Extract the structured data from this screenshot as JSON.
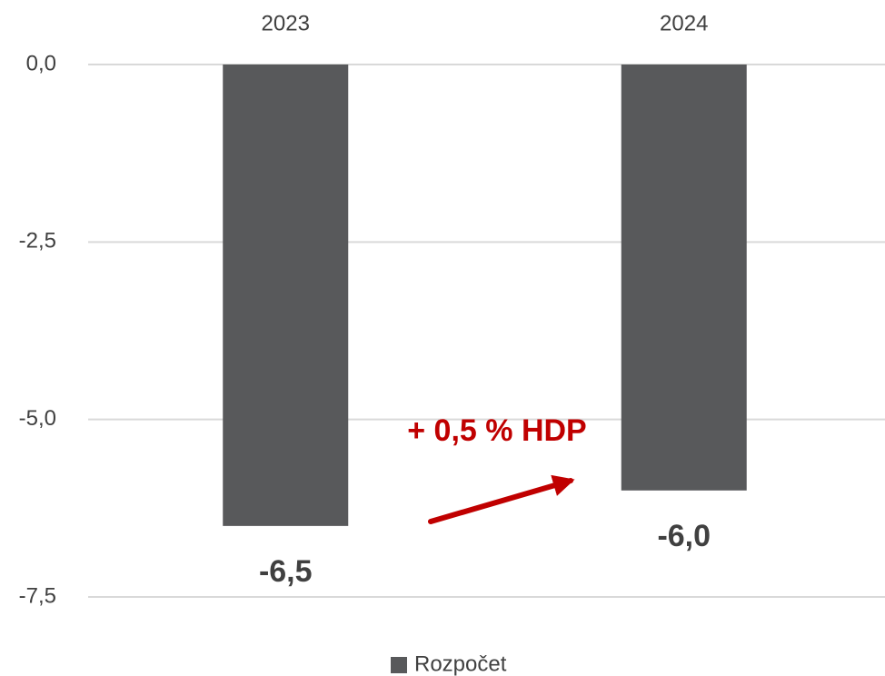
{
  "chart_data": {
    "type": "bar",
    "categories": [
      "2023",
      "2024"
    ],
    "series": [
      {
        "name": "Rozpočet",
        "color": "#58595b",
        "values": [
          -6.5,
          -6.0
        ],
        "value_labels": [
          "-6,5",
          "-6,0"
        ]
      }
    ],
    "ylim": [
      -7.5,
      0
    ],
    "yticks": [
      {
        "value": 0,
        "label": "0,0"
      },
      {
        "value": -2.5,
        "label": "-2,5"
      },
      {
        "value": -5,
        "label": "-5,0"
      },
      {
        "value": -7.5,
        "label": "-7,5"
      }
    ],
    "grid": true,
    "annotation": "+ 0,5 % HDP",
    "annotation_color": "#c00000",
    "legend": "bottom"
  }
}
